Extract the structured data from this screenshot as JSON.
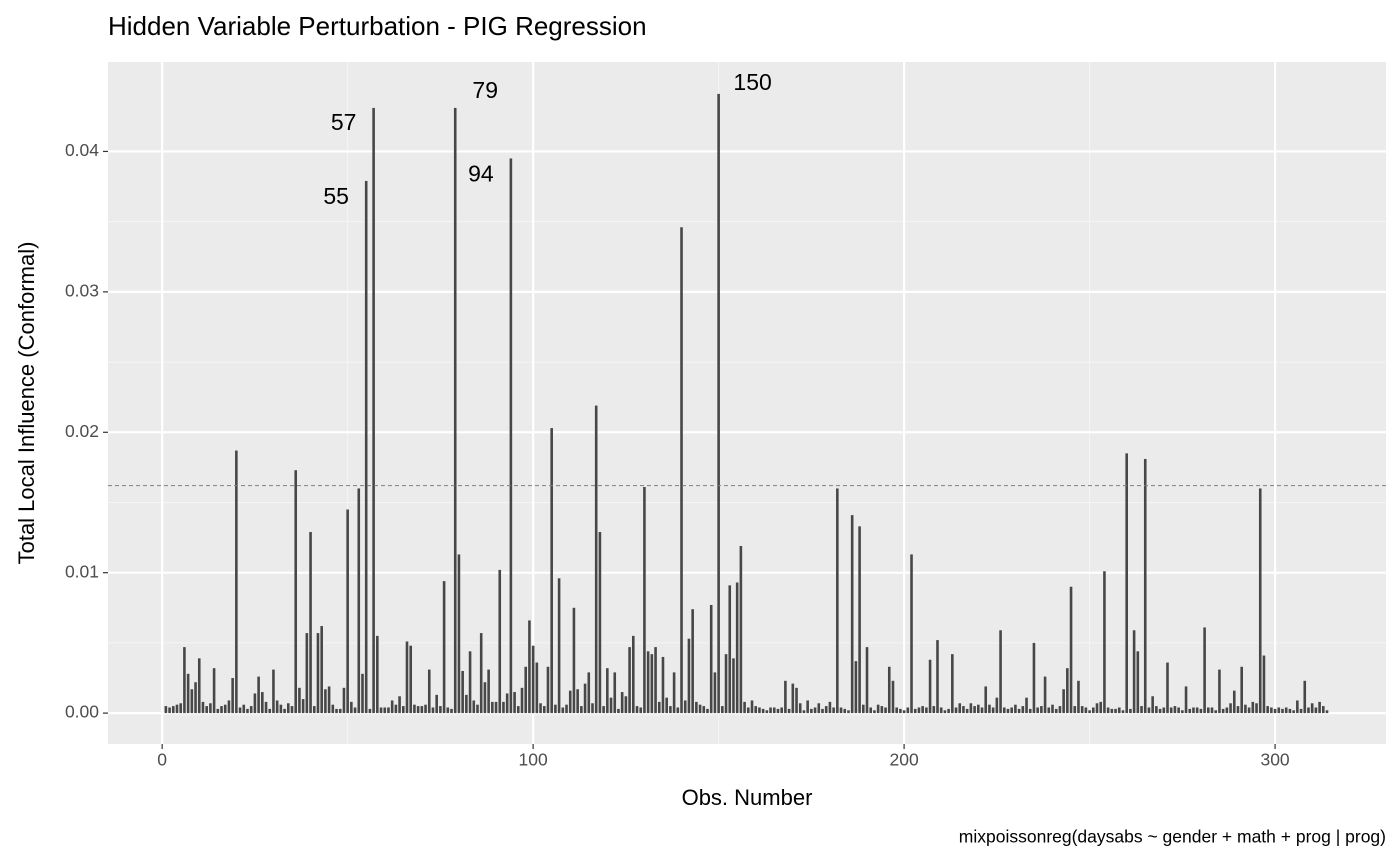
{
  "chart_data": {
    "type": "bar",
    "title": "Hidden Variable Perturbation - PIG Regression",
    "xlabel": "Obs. Number",
    "ylabel": "Total Local Influence (Conformal)",
    "caption": "mixpoissonreg(daysabs ~ gender + math + prog | prog)",
    "color": "#474747",
    "grid": true,
    "xlim": [
      -14.6,
      329.9
    ],
    "ylim": [
      -0.0022,
      0.04637
    ],
    "xticks": [
      0,
      100,
      200,
      300
    ],
    "yticks": [
      {
        "value": 0,
        "label": "0.00"
      },
      {
        "value": 0.01,
        "label": "0.01"
      },
      {
        "value": 0.02,
        "label": "0.02"
      },
      {
        "value": 0.03,
        "label": "0.03"
      },
      {
        "value": 0.04,
        "label": "0.04"
      }
    ],
    "reference_line": 0.0162,
    "annotations": [
      {
        "x": 55,
        "label": "55"
      },
      {
        "x": 57,
        "label": "57"
      },
      {
        "x": 79,
        "label": "79"
      },
      {
        "x": 94,
        "label": "94"
      },
      {
        "x": 150,
        "label": "150"
      }
    ],
    "x": [
      1,
      2,
      3,
      4,
      5,
      6,
      7,
      8,
      9,
      10,
      11,
      12,
      13,
      14,
      15,
      16,
      17,
      18,
      19,
      20,
      21,
      22,
      23,
      24,
      25,
      26,
      27,
      28,
      29,
      30,
      31,
      32,
      33,
      34,
      35,
      36,
      37,
      38,
      39,
      40,
      41,
      42,
      43,
      44,
      45,
      46,
      47,
      48,
      49,
      50,
      51,
      52,
      53,
      54,
      55,
      56,
      57,
      58,
      59,
      60,
      61,
      62,
      63,
      64,
      65,
      66,
      67,
      68,
      69,
      70,
      71,
      72,
      73,
      74,
      75,
      76,
      77,
      78,
      79,
      80,
      81,
      82,
      83,
      84,
      85,
      86,
      87,
      88,
      89,
      90,
      91,
      92,
      93,
      94,
      95,
      96,
      97,
      98,
      99,
      100,
      101,
      102,
      103,
      104,
      105,
      106,
      107,
      108,
      109,
      110,
      111,
      112,
      113,
      114,
      115,
      116,
      117,
      118,
      119,
      120,
      121,
      122,
      123,
      124,
      125,
      126,
      127,
      128,
      129,
      130,
      131,
      132,
      133,
      134,
      135,
      136,
      137,
      138,
      139,
      140,
      141,
      142,
      143,
      144,
      145,
      146,
      147,
      148,
      149,
      150,
      151,
      152,
      153,
      154,
      155,
      156,
      157,
      158,
      159,
      160,
      161,
      162,
      163,
      164,
      165,
      166,
      167,
      168,
      169,
      170,
      171,
      172,
      173,
      174,
      175,
      176,
      177,
      178,
      179,
      180,
      181,
      182,
      183,
      184,
      185,
      186,
      187,
      188,
      189,
      190,
      191,
      192,
      193,
      194,
      195,
      196,
      197,
      198,
      199,
      200,
      201,
      202,
      203,
      204,
      205,
      206,
      207,
      208,
      209,
      210,
      211,
      212,
      213,
      214,
      215,
      216,
      217,
      218,
      219,
      220,
      221,
      222,
      223,
      224,
      225,
      226,
      227,
      228,
      229,
      230,
      231,
      232,
      233,
      234,
      235,
      236,
      237,
      238,
      239,
      240,
      241,
      242,
      243,
      244,
      245,
      246,
      247,
      248,
      249,
      250,
      251,
      252,
      253,
      254,
      255,
      256,
      257,
      258,
      259,
      260,
      261,
      262,
      263,
      264,
      265,
      266,
      267,
      268,
      269,
      270,
      271,
      272,
      273,
      274,
      275,
      276,
      277,
      278,
      279,
      280,
      281,
      282,
      283,
      284,
      285,
      286,
      287,
      288,
      289,
      290,
      291,
      292,
      293,
      294,
      295,
      296,
      297,
      298,
      299,
      300,
      301,
      302,
      303,
      304,
      305,
      306,
      307,
      308,
      309,
      310,
      311,
      312,
      313,
      314
    ],
    "values": [
      0.0005,
      0.0004,
      0.0005,
      0.0006,
      0.0007,
      0.0047,
      0.0028,
      0.0017,
      0.0022,
      0.0039,
      0.0008,
      0.0005,
      0.0007,
      0.0032,
      0.0003,
      0.0005,
      0.0006,
      0.0009,
      0.0025,
      0.0187,
      0.0004,
      0.0006,
      0.0003,
      0.0005,
      0.0014,
      0.0026,
      0.0015,
      0.0008,
      0.0003,
      0.0031,
      0.0009,
      0.0006,
      0.0003,
      0.0007,
      0.0005,
      0.0173,
      0.0018,
      0.001,
      0.0057,
      0.0129,
      0.0005,
      0.0057,
      0.0062,
      0.0017,
      0.0019,
      0.0006,
      0.0003,
      0.0003,
      0.0018,
      0.0145,
      0.0008,
      0.0004,
      0.016,
      0.0028,
      0.0379,
      0.0003,
      0.0431,
      0.0055,
      0.0004,
      0.0004,
      0.0004,
      0.0009,
      0.0006,
      0.0012,
      0.0005,
      0.0051,
      0.0048,
      0.0006,
      0.0005,
      0.0005,
      0.0006,
      0.0031,
      0.0004,
      0.0013,
      0.0005,
      0.0094,
      0.0004,
      0.0003,
      0.0431,
      0.0113,
      0.003,
      0.0013,
      0.0044,
      0.0009,
      0.0006,
      0.0057,
      0.0022,
      0.0031,
      0.0008,
      0.0008,
      0.0102,
      0.0008,
      0.0014,
      0.0395,
      0.0015,
      0.0005,
      0.0018,
      0.0033,
      0.0066,
      0.0048,
      0.0036,
      0.0007,
      0.0005,
      0.0033,
      0.0203,
      0.0006,
      0.0096,
      0.0004,
      0.0006,
      0.0016,
      0.0075,
      0.0017,
      0.0005,
      0.0021,
      0.0029,
      0.0007,
      0.0219,
      0.0129,
      0.0005,
      0.0032,
      0.0011,
      0.0029,
      0.0003,
      0.0015,
      0.0012,
      0.0047,
      0.0055,
      0.0005,
      0.0004,
      0.0161,
      0.0044,
      0.0042,
      0.0047,
      0.0008,
      0.004,
      0.0011,
      0.0005,
      0.0029,
      0.0004,
      0.0346,
      0.0009,
      0.0053,
      0.0074,
      0.0008,
      0.0006,
      0.0005,
      0.0003,
      0.0077,
      0.0029,
      0.0441,
      0.0005,
      0.0042,
      0.0091,
      0.0039,
      0.0093,
      0.0119,
      0.0008,
      0.0004,
      0.0009,
      0.0005,
      0.0004,
      0.0003,
      0.0002,
      0.0004,
      0.0004,
      0.0003,
      0.0004,
      0.0023,
      0.0003,
      0.0021,
      0.0018,
      0.0007,
      0.0002,
      0.0009,
      0.0003,
      0.0004,
      0.0007,
      0.0003,
      0.0005,
      0.0008,
      0.0004,
      0.016,
      0.0004,
      0.0003,
      0.0002,
      0.0141,
      0.0037,
      0.0133,
      0.0006,
      0.0047,
      0.0004,
      0.0002,
      0.0006,
      0.0005,
      0.0004,
      0.0033,
      0.0023,
      0.0004,
      0.0003,
      0.0002,
      0.0004,
      0.0113,
      0.0003,
      0.0004,
      0.0005,
      0.0004,
      0.0038,
      0.0005,
      0.0052,
      0.0004,
      0.0002,
      0.0003,
      0.0042,
      0.0004,
      0.0007,
      0.0005,
      0.0003,
      0.0007,
      0.0005,
      0.0006,
      0.0004,
      0.0019,
      0.0006,
      0.0004,
      0.0011,
      0.0059,
      0.0004,
      0.0003,
      0.0004,
      0.0006,
      0.0003,
      0.0005,
      0.0011,
      0.0003,
      0.005,
      0.0004,
      0.0005,
      0.0026,
      0.0004,
      0.0006,
      0.0003,
      0.0005,
      0.0017,
      0.0032,
      0.009,
      0.0005,
      0.0023,
      0.0005,
      0.0004,
      0.0002,
      0.0004,
      0.0007,
      0.0008,
      0.0101,
      0.0004,
      0.0003,
      0.0003,
      0.0004,
      0.0002,
      0.0185,
      0.0003,
      0.0059,
      0.0044,
      0.0005,
      0.0181,
      0.0004,
      0.0012,
      0.0005,
      0.0003,
      0.0004,
      0.0036,
      0.0004,
      0.0005,
      0.0004,
      0.0002,
      0.0019,
      0.0003,
      0.0004,
      0.0004,
      0.0003,
      0.0061,
      0.0004,
      0.0004,
      0.0002,
      0.0031,
      0.0003,
      0.0004,
      0.0007,
      0.0016,
      0.0005,
      0.0033,
      0.0006,
      0.0004,
      0.0008,
      0.0007,
      0.016,
      0.0041,
      0.0005,
      0.0004,
      0.0003,
      0.0004,
      0.0003,
      0.0004,
      0.0003,
      0.0002,
      0.0009,
      0.0003,
      0.0023,
      0.0004,
      0.0007,
      0.0004,
      0.0008,
      0.0005,
      0.0002
    ]
  }
}
